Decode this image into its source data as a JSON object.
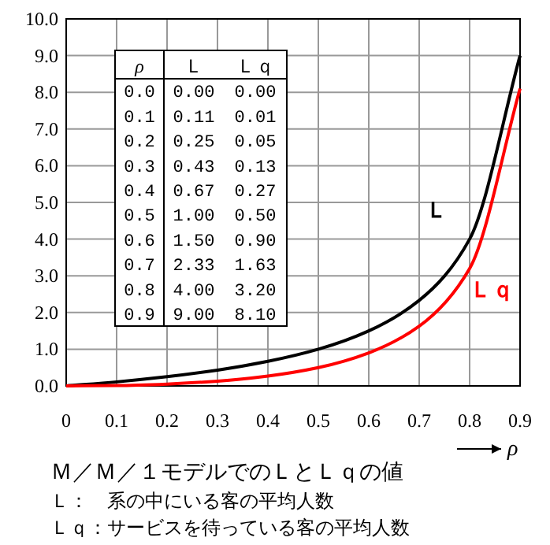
{
  "chart_data": [
    {
      "type": "line",
      "title": "Ｍ／Ｍ／１モデルでのＬとＬｑの値",
      "xlabel": "ρ",
      "annotations": [
        "Ｌ：　系の中にいる客の平均人数",
        "Ｌｑ：サービスを待っている客の平均人数"
      ],
      "x": [
        0.0,
        0.1,
        0.2,
        0.3,
        0.4,
        0.5,
        0.6,
        0.7,
        0.8,
        0.9
      ],
      "series": [
        {
          "name": "Ｌ",
          "color": "#000000",
          "values": [
            0.0,
            0.11,
            0.25,
            0.43,
            0.67,
            1.0,
            1.5,
            2.33,
            4.0,
            9.0
          ]
        },
        {
          "name": "Ｌｑ",
          "color": "#ff0000",
          "values": [
            0.0,
            0.01,
            0.05,
            0.13,
            0.27,
            0.5,
            0.9,
            1.63,
            3.2,
            8.1
          ]
        }
      ],
      "xlim": [
        0,
        0.9
      ],
      "xticks": [
        0,
        0.1,
        0.2,
        0.3,
        0.4,
        0.5,
        0.6,
        0.7,
        0.8,
        0.9
      ],
      "ylim": [
        0,
        10
      ],
      "yticks": [
        {
          "value": 0,
          "label": "0.0"
        },
        {
          "value": 1,
          "label": "1.0"
        },
        {
          "value": 2,
          "label": "2.0"
        },
        {
          "value": 3,
          "label": "3.0"
        },
        {
          "value": 4,
          "label": "4.0"
        },
        {
          "value": 5,
          "label": "5.0"
        },
        {
          "value": 6,
          "label": "6.0"
        },
        {
          "value": 7,
          "label": "7.0"
        },
        {
          "value": 8,
          "label": "8.0"
        },
        {
          "value": 9,
          "label": "9.0"
        },
        {
          "value": 10,
          "label": "10.0"
        }
      ],
      "grid": true
    },
    {
      "type": "heatmap",
      "ylabel": "ρ",
      "categories": [
        "Ｌ",
        "Ｌｑ"
      ],
      "y_categories": [
        "0.0",
        "0.1",
        "0.2",
        "0.3",
        "0.4",
        "0.5",
        "0.6",
        "0.7",
        "0.8",
        "0.9"
      ],
      "cells": [
        [
          null,
          null
        ],
        [
          null,
          null
        ],
        [
          null,
          null
        ],
        [
          null,
          null
        ],
        [
          null,
          null
        ],
        [
          null,
          null
        ],
        [
          null,
          null
        ],
        [
          null,
          null
        ],
        [
          null,
          null
        ],
        [
          null,
          null
        ]
      ],
      "cell_labels": [
        [
          "0.00",
          "0.00"
        ],
        [
          "0.11",
          "0.01"
        ],
        [
          "0.25",
          "0.05"
        ],
        [
          "0.43",
          "0.13"
        ],
        [
          "0.67",
          "0.27"
        ],
        [
          "1.00",
          "0.50"
        ],
        [
          "1.50",
          "0.90"
        ],
        [
          "2.33",
          "1.63"
        ],
        [
          "4.00",
          "3.20"
        ],
        [
          "9.00",
          "8.10"
        ]
      ]
    }
  ]
}
